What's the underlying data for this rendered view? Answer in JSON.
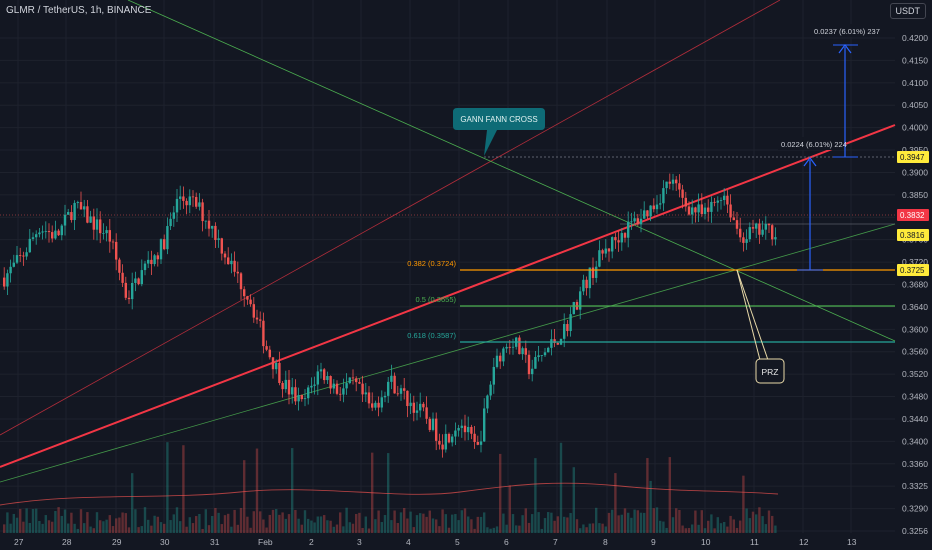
{
  "header": {
    "symbol": "GLMR / TetherUS, 1h, BINANCE",
    "currency": "USDT"
  },
  "colors": {
    "background": "#131722",
    "up": "#26a69a",
    "down": "#ef5350",
    "gann_red": "#f23645",
    "gann_green": "#4caf50",
    "fib_orange": "#ff9800",
    "fib_green": "#4caf50",
    "fib_teal": "#26a69a",
    "measure_blue": "#2962ff",
    "price_tag_yellow": "#ffeb3b",
    "label_teal": "#0e6b76"
  },
  "chart_data": {
    "type": "candlestick",
    "ylim": [
      0.3256,
      0.424
    ],
    "y_ticks": [
      "0.4200",
      "0.4150",
      "0.4100",
      "0.4050",
      "0.4000",
      "0.3950",
      "0.3900",
      "0.3850",
      "0.3800",
      "0.3760",
      "0.3720",
      "0.3680",
      "0.3640",
      "0.3600",
      "0.3560",
      "0.3520",
      "0.3480",
      "0.3440",
      "0.3400",
      "0.3360",
      "0.3325",
      "0.3290",
      "0.3256"
    ],
    "x_ticks": [
      "27",
      "28",
      "29",
      "30",
      "31",
      "Feb",
      "2",
      "3",
      "4",
      "5",
      "6",
      "7",
      "8",
      "9",
      "10",
      "11",
      "12",
      "13"
    ],
    "price_tags": [
      {
        "text": "0.3947",
        "style": "yellow"
      },
      {
        "text": "0.3832",
        "style": "red"
      },
      {
        "text": "0.3816",
        "style": "yellow"
      },
      {
        "text": "0.3725",
        "style": "yellow"
      }
    ],
    "fib_levels": [
      {
        "label": "0.382 (0.3724)",
        "value": 0.3724,
        "color": "#ff9800"
      },
      {
        "label": "0.5 (0.3655)",
        "value": 0.3655,
        "color": "#4caf50"
      },
      {
        "label": "0.618 (0.3587)",
        "value": 0.3587,
        "color": "#26a69a"
      }
    ],
    "annotations": {
      "gann_cross": "GANN FANN CROSS",
      "prz": "PRZ",
      "measure_upper": "0.0237 (6.01%) 237",
      "measure_lower": "0.0224 (6.01%) 224"
    },
    "series": [
      {
        "name": "close",
        "values": [
          0.374,
          0.378,
          0.384,
          0.382,
          0.388,
          0.385,
          0.382,
          0.37,
          0.376,
          0.38,
          0.39,
          0.388,
          0.383,
          0.376,
          0.37,
          0.36,
          0.353,
          0.349,
          0.356,
          0.352,
          0.353,
          0.348,
          0.354,
          0.35,
          0.347,
          0.342,
          0.346,
          0.34,
          0.358,
          0.362,
          0.356,
          0.36,
          0.364,
          0.372,
          0.378,
          0.382,
          0.385,
          0.388,
          0.393,
          0.388,
          0.386,
          0.391,
          0.382,
          0.383,
          0.3832
        ]
      }
    ]
  }
}
